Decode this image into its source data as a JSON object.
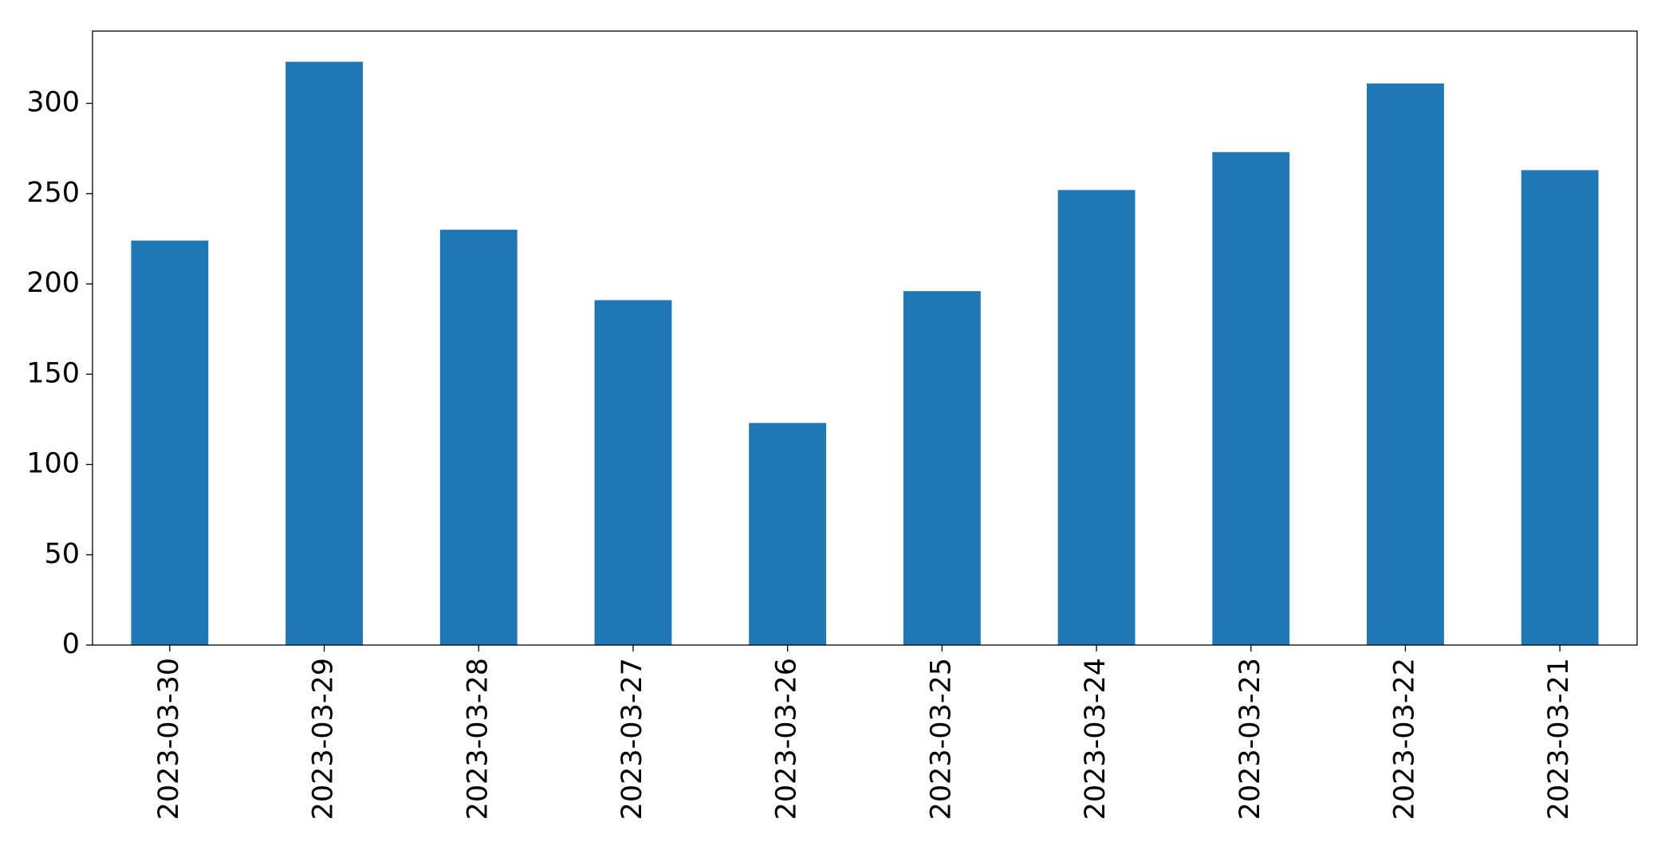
{
  "chart_data": {
    "type": "bar",
    "categories": [
      "2023-03-30",
      "2023-03-29",
      "2023-03-28",
      "2023-03-27",
      "2023-03-26",
      "2023-03-25",
      "2023-03-24",
      "2023-03-23",
      "2023-03-22",
      "2023-03-21"
    ],
    "values": [
      224,
      323,
      230,
      191,
      123,
      196,
      252,
      273,
      311,
      263
    ],
    "color": "#1f77b4",
    "ylim": [
      0,
      340
    ],
    "yticks": [
      0,
      50,
      100,
      150,
      200,
      250,
      300
    ],
    "grid": false
  }
}
